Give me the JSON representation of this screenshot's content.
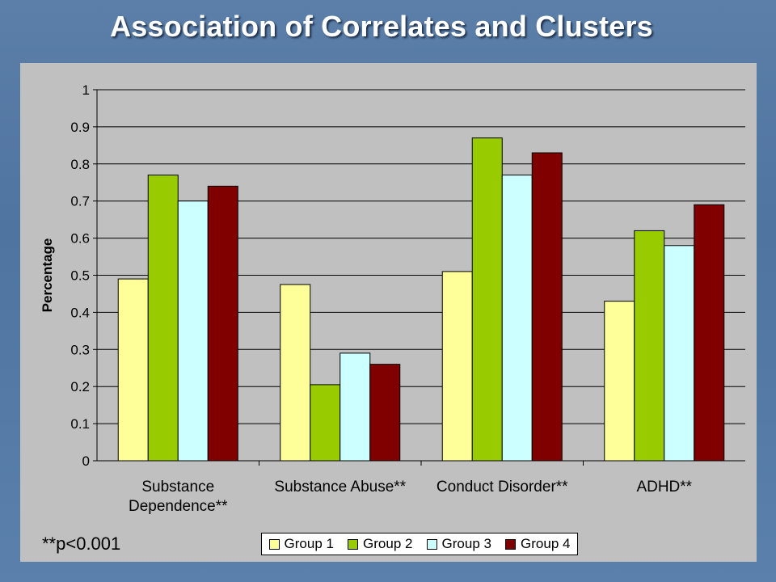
{
  "title": "Association of Correlates and Clusters",
  "footnote": "**p<0.001",
  "colors": {
    "background": "#5580aa",
    "plot_area": "#c0c0c0",
    "group1": "#ffff99",
    "group2": "#99cc00",
    "group3": "#ccffff",
    "group4": "#800000"
  },
  "chart_data": {
    "type": "bar",
    "title": "Association of Correlates and Clusters",
    "xlabel": "",
    "ylabel": "Percentage",
    "ylim": [
      0,
      1
    ],
    "yticks": [
      "0",
      "0.1",
      "0.2",
      "0.3",
      "0.4",
      "0.5",
      "0.6",
      "0.7",
      "0.8",
      "0.9",
      "1"
    ],
    "categories": [
      "Substance Dependence**",
      "Substance Abuse**",
      "Conduct Disorder**",
      "ADHD**"
    ],
    "series": [
      {
        "name": "Group 1",
        "values": [
          0.49,
          0.475,
          0.51,
          0.43
        ]
      },
      {
        "name": "Group 2",
        "values": [
          0.77,
          0.205,
          0.87,
          0.62
        ]
      },
      {
        "name": "Group 3",
        "values": [
          0.7,
          0.29,
          0.77,
          0.58
        ]
      },
      {
        "name": "Group 4",
        "values": [
          0.74,
          0.26,
          0.83,
          0.69
        ]
      }
    ],
    "grid": true,
    "legend": "bottom"
  }
}
